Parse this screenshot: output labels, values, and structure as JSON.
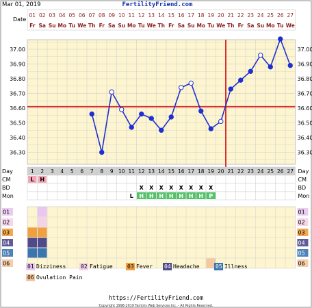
{
  "header": {
    "start_date": "Mar 01, 2019",
    "site": "FertilityFriend.com",
    "date_row_label": "Date",
    "day_row_label": "Day"
  },
  "chart_data": {
    "type": "line",
    "x": [
      1,
      2,
      3,
      4,
      5,
      6,
      7,
      8,
      9,
      10,
      11,
      12,
      13,
      14,
      15,
      16,
      17,
      18,
      19,
      20,
      21,
      22,
      23,
      24,
      25,
      26,
      27
    ],
    "date_numbers": [
      "01",
      "02",
      "03",
      "04",
      "05",
      "06",
      "07",
      "08",
      "09",
      "10",
      "11",
      "12",
      "13",
      "14",
      "15",
      "16",
      "17",
      "18",
      "19",
      "20",
      "21",
      "22",
      "23",
      "24",
      "25",
      "26",
      "27"
    ],
    "weekdays": [
      "Fr",
      "Sa",
      "Su",
      "Mo",
      "Tu",
      "We",
      "Th",
      "Fr",
      "Sa",
      "Su",
      "Mo",
      "Tu",
      "We",
      "Th",
      "Fr",
      "Sa",
      "Su",
      "Mo",
      "Tu",
      "We",
      "Th",
      "Fr",
      "Sa",
      "Su",
      "Mo",
      "Tu",
      "We"
    ],
    "temperatures": [
      {
        "day": 7,
        "temp": 36.56,
        "marker": "filled"
      },
      {
        "day": 8,
        "temp": 36.3,
        "marker": "filled"
      },
      {
        "day": 9,
        "temp": 36.71,
        "marker": "open"
      },
      {
        "day": 10,
        "temp": 36.59,
        "marker": "open"
      },
      {
        "day": 11,
        "temp": 36.47,
        "marker": "filled"
      },
      {
        "day": 12,
        "temp": 36.56,
        "marker": "filled"
      },
      {
        "day": 13,
        "temp": 36.53,
        "marker": "filled"
      },
      {
        "day": 14,
        "temp": 36.45,
        "marker": "filled"
      },
      {
        "day": 15,
        "temp": 36.54,
        "marker": "filled"
      },
      {
        "day": 16,
        "temp": 36.74,
        "marker": "open"
      },
      {
        "day": 17,
        "temp": 36.77,
        "marker": "open"
      },
      {
        "day": 18,
        "temp": 36.58,
        "marker": "filled"
      },
      {
        "day": 19,
        "temp": 36.46,
        "marker": "filled"
      },
      {
        "day": 20,
        "temp": 36.51,
        "marker": "open"
      },
      {
        "day": 21,
        "temp": 36.73,
        "marker": "filled"
      },
      {
        "day": 22,
        "temp": 36.79,
        "marker": "filled"
      },
      {
        "day": 23,
        "temp": 36.85,
        "marker": "filled"
      },
      {
        "day": 24,
        "temp": 36.96,
        "marker": "open"
      },
      {
        "day": 25,
        "temp": 36.88,
        "marker": "filled"
      },
      {
        "day": 26,
        "temp": 37.07,
        "marker": "filled"
      },
      {
        "day": 27,
        "temp": 36.89,
        "marker": "filled"
      }
    ],
    "y_ticks": [
      "37.00",
      "36.90",
      "36.80",
      "36.70",
      "36.60",
      "36.50",
      "36.40",
      "36.30"
    ],
    "ylim": [
      36.22,
      37.12
    ],
    "coverline_temp": 36.61,
    "ovulation_day": 20,
    "colors": {
      "plot_bg": "#fdf5d0",
      "grid": "#c9c9c9",
      "line": "#1f2fd0",
      "coverline": "#d83030",
      "header_text": "#8a1a1a",
      "title_text": "#1030b0",
      "row_header_bg": "#d0d0d0"
    }
  },
  "rows": {
    "cm_label": "CM",
    "bd_label": "BD",
    "mon_label": "Mon",
    "cm": [
      {
        "day": 1,
        "text": "L"
      },
      {
        "day": 2,
        "text": "H"
      }
    ],
    "bd": [
      {
        "day": 12,
        "text": "X"
      },
      {
        "day": 13,
        "text": "X"
      },
      {
        "day": 14,
        "text": "X"
      },
      {
        "day": 15,
        "text": "X"
      },
      {
        "day": 16,
        "text": "X"
      },
      {
        "day": 17,
        "text": "X"
      },
      {
        "day": 18,
        "text": "X"
      },
      {
        "day": 19,
        "text": "X"
      }
    ],
    "mon": [
      {
        "day": 11,
        "text": "L"
      },
      {
        "day": 12,
        "text": "H"
      },
      {
        "day": 13,
        "text": "H"
      },
      {
        "day": 14,
        "text": "H"
      },
      {
        "day": 15,
        "text": "H"
      },
      {
        "day": 16,
        "text": "H"
      },
      {
        "day": 17,
        "text": "H"
      },
      {
        "day": 18,
        "text": "H"
      },
      {
        "day": 19,
        "text": "P"
      }
    ]
  },
  "symptoms": {
    "row_labels": [
      "01",
      "02",
      "03",
      "04",
      "05",
      "06"
    ],
    "row_colors": [
      "#e9c7f0",
      "#f4d2e8",
      "#f0a040",
      "#504a8a",
      "#3a76b0",
      "#f5c8a0"
    ],
    "marks": [
      {
        "row": 0,
        "day": 2
      },
      {
        "row": 1,
        "day": 2
      },
      {
        "row": 2,
        "day": 1
      },
      {
        "row": 2,
        "day": 2
      },
      {
        "row": 3,
        "day": 1
      },
      {
        "row": 3,
        "day": 2
      },
      {
        "row": 4,
        "day": 1
      },
      {
        "row": 4,
        "day": 2
      },
      {
        "row": 5,
        "day": 19
      }
    ]
  },
  "legend": [
    {
      "code": "01",
      "label": "Dizziness",
      "color": "#e9c7f0"
    },
    {
      "code": "02",
      "label": "Fatigue",
      "color": "#f4d2e8"
    },
    {
      "code": "03",
      "label": "Fever",
      "color": "#f0a040"
    },
    {
      "code": "04",
      "label": "Headache",
      "color": "#504a8a"
    },
    {
      "code": "05",
      "label": "Illness",
      "color": "#3a76b0"
    },
    {
      "code": "06",
      "label": "Ovulation Pain",
      "color": "#f5c8a0"
    }
  ],
  "footer": {
    "url": "https://FertilityFriend.com",
    "copyright": "Copyright 1998-2019 Tamtris Web Services Inc. - All Rights Reserved."
  }
}
